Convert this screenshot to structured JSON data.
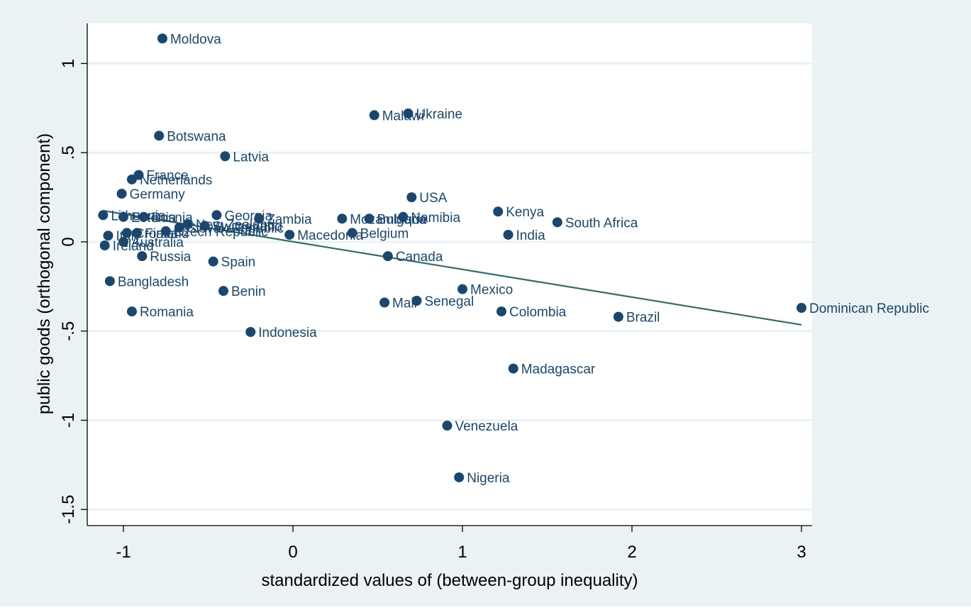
{
  "chart_data": {
    "type": "scatter",
    "title": "",
    "xlabel": "standardized values of (between-group inequality)",
    "ylabel": "public goods (orthogonal component)",
    "xlim": [
      -1.2,
      3.07
    ],
    "ylim": [
      -1.6,
      1.2
    ],
    "xticks": [
      -1,
      0,
      1,
      2,
      3
    ],
    "xtick_labels": [
      "-1",
      "0",
      "1",
      "2",
      "3"
    ],
    "yticks": [
      -1.5,
      -1,
      -0.5,
      0,
      0.5,
      1
    ],
    "ytick_labels": [
      "-1.5",
      "-1",
      "-.5",
      "0",
      ".5",
      "1"
    ],
    "grid": "horizontal",
    "legend": "none",
    "colors": {
      "outer_background": "#eaf2f3",
      "plot_background": "#ffffff",
      "gridline": "#eaf2f3",
      "marker": "#1a476f",
      "label": "#1a476f",
      "fit_line": "#2d6d66",
      "axis": "#000000"
    },
    "fit_line": {
      "x": [
        -1.12,
        3.0
      ],
      "y": [
        0.175,
        -0.465
      ]
    },
    "points": [
      {
        "label": "Moldova",
        "x": -0.77,
        "y": 1.14
      },
      {
        "label": "Ukraine",
        "x": 0.68,
        "y": 0.72
      },
      {
        "label": "Malawi",
        "x": 0.48,
        "y": 0.71
      },
      {
        "label": "Botswana",
        "x": -0.79,
        "y": 0.595
      },
      {
        "label": "Latvia",
        "x": -0.4,
        "y": 0.48
      },
      {
        "label": "France",
        "x": -0.91,
        "y": 0.375
      },
      {
        "label": "Netherlands",
        "x": -0.95,
        "y": 0.35
      },
      {
        "label": "Germany",
        "x": -1.01,
        "y": 0.27
      },
      {
        "label": "USA",
        "x": 0.7,
        "y": 0.25
      },
      {
        "label": "Kenya",
        "x": 1.21,
        "y": 0.17
      },
      {
        "label": "South Africa",
        "x": 1.56,
        "y": 0.11
      },
      {
        "label": "India",
        "x": 1.27,
        "y": 0.04
      },
      {
        "label": "Lithuania",
        "x": -1.12,
        "y": 0.15
      },
      {
        "label": "Estonia",
        "x": -1.0,
        "y": 0.14
      },
      {
        "label": "Bosnia",
        "x": -0.88,
        "y": 0.14
      },
      {
        "label": "Georgia",
        "x": -0.45,
        "y": 0.15
      },
      {
        "label": "Zambia",
        "x": -0.2,
        "y": 0.13
      },
      {
        "label": "Mozambique",
        "x": 0.29,
        "y": 0.13
      },
      {
        "label": "Bulgaria",
        "x": 0.45,
        "y": 0.13
      },
      {
        "label": "Namibia",
        "x": 0.65,
        "y": 0.14
      },
      {
        "label": "New Zealand",
        "x": -0.62,
        "y": 0.1
      },
      {
        "label": "Switzerland",
        "x": -0.52,
        "y": 0.09
      },
      {
        "label": "Slovak Republic",
        "x": -0.67,
        "y": 0.08
      },
      {
        "label": "Czech Republic",
        "x": -0.75,
        "y": 0.06
      },
      {
        "label": "Finland",
        "x": -0.92,
        "y": 0.05
      },
      {
        "label": "Croatia",
        "x": -0.98,
        "y": 0.05
      },
      {
        "label": "Italy",
        "x": -1.09,
        "y": 0.035
      },
      {
        "label": "Australia",
        "x": -1.0,
        "y": 0.0
      },
      {
        "label": "Ireland",
        "x": -1.11,
        "y": -0.02
      },
      {
        "label": "Macedonia",
        "x": -0.02,
        "y": 0.04
      },
      {
        "label": "Belgium",
        "x": 0.35,
        "y": 0.05
      },
      {
        "label": "Russia",
        "x": -0.89,
        "y": -0.08
      },
      {
        "label": "Spain",
        "x": -0.47,
        "y": -0.11
      },
      {
        "label": "Canada",
        "x": 0.56,
        "y": -0.08
      },
      {
        "label": "Bangladesh",
        "x": -1.08,
        "y": -0.22
      },
      {
        "label": "Benin",
        "x": -0.41,
        "y": -0.275
      },
      {
        "label": "Mexico",
        "x": 1.0,
        "y": -0.265
      },
      {
        "label": "Mali",
        "x": 0.54,
        "y": -0.34
      },
      {
        "label": "Senegal",
        "x": 0.73,
        "y": -0.33
      },
      {
        "label": "Colombia",
        "x": 1.23,
        "y": -0.39
      },
      {
        "label": "Brazil",
        "x": 1.92,
        "y": -0.42
      },
      {
        "label": "Dominican Republic",
        "x": 3.0,
        "y": -0.37
      },
      {
        "label": "Romania",
        "x": -0.95,
        "y": -0.39
      },
      {
        "label": "Indonesia",
        "x": -0.25,
        "y": -0.505
      },
      {
        "label": "Madagascar",
        "x": 1.3,
        "y": -0.71
      },
      {
        "label": "Venezuela",
        "x": 0.91,
        "y": -1.03
      },
      {
        "label": "Nigeria",
        "x": 0.98,
        "y": -1.32
      }
    ]
  }
}
